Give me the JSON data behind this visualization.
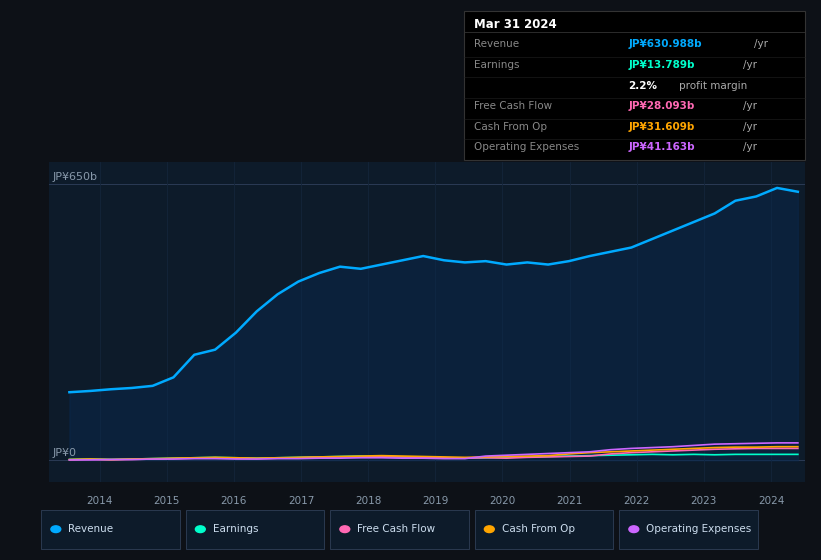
{
  "bg_color": "#0d1117",
  "plot_bg_color": "#0d1b2a",
  "date": "Mar 31 2024",
  "tooltip_rows": [
    {
      "label": "Revenue",
      "value": "JP¥630.988b",
      "value_color": "#00aaff",
      "has_yr": true
    },
    {
      "label": "Earnings",
      "value": "JP¥13.789b",
      "value_color": "#00ffcc",
      "has_yr": true
    },
    {
      "label": "",
      "value": "2.2%",
      "value_color": "#ffffff",
      "has_yr": false,
      "suffix": "profit margin"
    },
    {
      "label": "Free Cash Flow",
      "value": "JP¥28.093b",
      "value_color": "#ff69b4",
      "has_yr": true
    },
    {
      "label": "Cash From Op",
      "value": "JP¥31.609b",
      "value_color": "#ffa500",
      "has_yr": true
    },
    {
      "label": "Operating Expenses",
      "value": "JP¥41.163b",
      "value_color": "#cc66ff",
      "has_yr": true
    }
  ],
  "ylabel_top": "JP¥650b",
  "ylabel_bottom": "JP¥0",
  "xticklabels": [
    "2014",
    "2015",
    "2016",
    "2017",
    "2018",
    "2019",
    "2020",
    "2021",
    "2022",
    "2023",
    "2024"
  ],
  "legend": [
    {
      "label": "Revenue",
      "color": "#00aaff"
    },
    {
      "label": "Earnings",
      "color": "#00ffcc"
    },
    {
      "label": "Free Cash Flow",
      "color": "#ff69b4"
    },
    {
      "label": "Cash From Op",
      "color": "#ffa500"
    },
    {
      "label": "Operating Expenses",
      "color": "#cc66ff"
    }
  ],
  "revenue": [
    160,
    163,
    167,
    170,
    175,
    195,
    248,
    260,
    300,
    350,
    390,
    420,
    440,
    455,
    450,
    460,
    470,
    480,
    470,
    465,
    468,
    460,
    465,
    460,
    468,
    480,
    490,
    500,
    520,
    540,
    560,
    580,
    610,
    620,
    640,
    631
  ],
  "earnings": [
    2,
    3,
    2,
    3,
    4,
    5,
    6,
    7,
    6,
    5,
    6,
    7,
    8,
    9,
    10,
    9,
    8,
    7,
    6,
    5,
    6,
    7,
    8,
    9,
    10,
    11,
    12,
    13,
    14,
    13,
    14,
    13,
    14,
    14,
    14,
    14
  ],
  "free_cash_flow": [
    1,
    2,
    1,
    2,
    3,
    4,
    5,
    6,
    5,
    4,
    5,
    6,
    7,
    8,
    8,
    9,
    8,
    7,
    6,
    5,
    6,
    5,
    7,
    8,
    9,
    10,
    15,
    18,
    20,
    22,
    24,
    26,
    27,
    28,
    28,
    28
  ],
  "cash_from_op": [
    2,
    3,
    2,
    3,
    4,
    5,
    6,
    7,
    6,
    5,
    6,
    7,
    8,
    9,
    10,
    11,
    10,
    9,
    8,
    7,
    8,
    9,
    10,
    11,
    15,
    18,
    20,
    22,
    24,
    26,
    28,
    30,
    31,
    31,
    32,
    32
  ],
  "operating_expenses": [
    1,
    1,
    2,
    2,
    3,
    3,
    4,
    4,
    3,
    3,
    4,
    4,
    5,
    5,
    6,
    6,
    5,
    5,
    4,
    4,
    10,
    12,
    14,
    16,
    18,
    20,
    25,
    28,
    30,
    32,
    35,
    38,
    39,
    40,
    41,
    41
  ],
  "n_points": 36,
  "xmin": 2013.25,
  "xmax": 2024.5,
  "ymin": -50,
  "ymax": 700
}
